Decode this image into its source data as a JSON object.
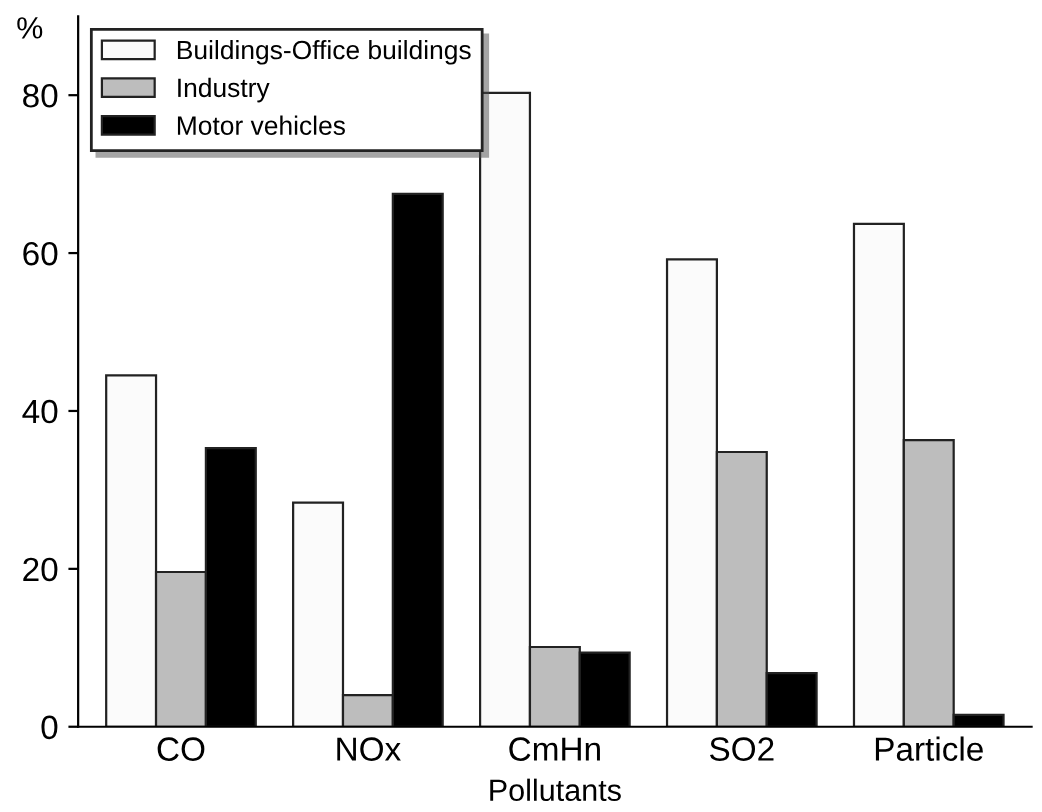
{
  "chart_data": {
    "type": "bar",
    "xlabel": "Pollutants",
    "ylabel": "%",
    "categories": [
      "CO",
      "NOx",
      "CmHn",
      "SO2",
      "Particle"
    ],
    "series": [
      {
        "name": "Buildings-Office buildings",
        "color": "#fbfbfb",
        "values": [
          44.5,
          28.4,
          80.3,
          59.2,
          63.7
        ]
      },
      {
        "name": "Industry",
        "color": "#bdbdbd",
        "values": [
          19.6,
          4.0,
          10.1,
          34.8,
          36.3
        ]
      },
      {
        "name": "Motor vehicles",
        "color": "#000000",
        "values": [
          35.3,
          67.5,
          9.4,
          6.8,
          1.5
        ]
      }
    ],
    "ylim": [
      0,
      90
    ],
    "yticks": [
      0,
      20,
      40,
      60,
      80
    ],
    "grid": false,
    "legend": "top left"
  }
}
